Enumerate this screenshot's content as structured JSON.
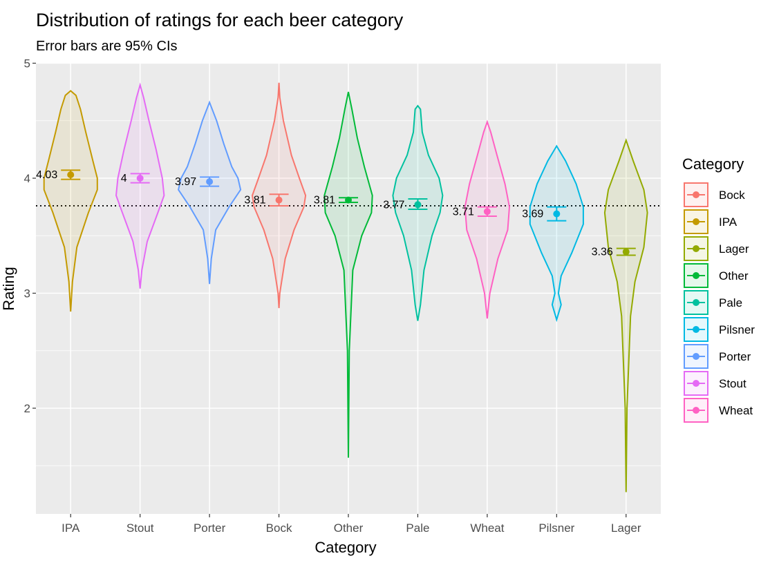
{
  "chart_data": {
    "type": "violin",
    "title": "Distribution of ratings for each beer category",
    "subtitle": "Error bars are 95% CIs",
    "xlabel": "Category",
    "ylabel": "Rating",
    "ylim": [
      1.1,
      5.0
    ],
    "yticks": [
      2,
      3,
      4,
      5
    ],
    "grid": true,
    "reference_line": {
      "y": 3.76,
      "style": "dotted"
    },
    "legend": {
      "title": "Category",
      "position": "right"
    },
    "categories": [
      "IPA",
      "Stout",
      "Porter",
      "Bock",
      "Other",
      "Pale",
      "Wheat",
      "Pilsner",
      "Lager"
    ],
    "series": [
      {
        "name": "IPA",
        "color": "#C49A00",
        "mean": 4.03,
        "label": "4.03",
        "ci": [
          3.99,
          4.07
        ],
        "shape": [
          [
            2.84,
            0.0
          ],
          [
            3.1,
            0.02
          ],
          [
            3.4,
            0.07
          ],
          [
            3.7,
            0.2
          ],
          [
            3.9,
            0.3
          ],
          [
            4.0,
            0.3
          ],
          [
            4.15,
            0.25
          ],
          [
            4.4,
            0.17
          ],
          [
            4.6,
            0.11
          ],
          [
            4.72,
            0.06
          ],
          [
            4.76,
            0.0
          ]
        ]
      },
      {
        "name": "Stout",
        "color": "#E56AF5",
        "mean": 4.0,
        "label": "4",
        "ci": [
          3.96,
          4.04
        ],
        "shape": [
          [
            3.04,
            0.0
          ],
          [
            3.2,
            0.02
          ],
          [
            3.45,
            0.08
          ],
          [
            3.7,
            0.2
          ],
          [
            3.85,
            0.27
          ],
          [
            4.0,
            0.25
          ],
          [
            4.25,
            0.18
          ],
          [
            4.5,
            0.1
          ],
          [
            4.7,
            0.04
          ],
          [
            4.81,
            0.0
          ]
        ]
      },
      {
        "name": "Porter",
        "color": "#619CFF",
        "mean": 3.97,
        "label": "3.97",
        "ci": [
          3.93,
          4.01
        ],
        "shape": [
          [
            3.08,
            0.0
          ],
          [
            3.3,
            0.02
          ],
          [
            3.55,
            0.07
          ],
          [
            3.75,
            0.22
          ],
          [
            3.9,
            0.35
          ],
          [
            4.0,
            0.32
          ],
          [
            4.1,
            0.25
          ],
          [
            4.3,
            0.16
          ],
          [
            4.5,
            0.08
          ],
          [
            4.66,
            0.0
          ]
        ]
      },
      {
        "name": "Bock",
        "color": "#F8766D",
        "mean": 3.81,
        "label": "3.81",
        "ci": [
          3.76,
          3.86
        ],
        "shape": [
          [
            2.87,
            0.0
          ],
          [
            3.0,
            0.01
          ],
          [
            3.3,
            0.07
          ],
          [
            3.55,
            0.17
          ],
          [
            3.75,
            0.28
          ],
          [
            3.85,
            0.3
          ],
          [
            4.0,
            0.23
          ],
          [
            4.2,
            0.14
          ],
          [
            4.5,
            0.05
          ],
          [
            4.7,
            0.01
          ],
          [
            4.83,
            0.0
          ]
        ]
      },
      {
        "name": "Other",
        "color": "#00BA38",
        "mean": 3.81,
        "label": "3.81",
        "ci": [
          3.79,
          3.83
        ],
        "shape": [
          [
            1.57,
            0.0
          ],
          [
            2.5,
            0.01
          ],
          [
            3.2,
            0.05
          ],
          [
            3.5,
            0.15
          ],
          [
            3.7,
            0.26
          ],
          [
            3.85,
            0.27
          ],
          [
            4.1,
            0.18
          ],
          [
            4.35,
            0.1
          ],
          [
            4.6,
            0.04
          ],
          [
            4.75,
            0.0
          ]
        ]
      },
      {
        "name": "Pale",
        "color": "#00C19F",
        "mean": 3.77,
        "label": "3.77",
        "ci": [
          3.73,
          3.82
        ],
        "shape": [
          [
            2.76,
            0.0
          ],
          [
            2.9,
            0.03
          ],
          [
            3.2,
            0.07
          ],
          [
            3.5,
            0.16
          ],
          [
            3.7,
            0.25
          ],
          [
            3.85,
            0.28
          ],
          [
            4.0,
            0.24
          ],
          [
            4.2,
            0.12
          ],
          [
            4.4,
            0.05
          ],
          [
            4.6,
            0.03
          ],
          [
            4.63,
            0.0
          ]
        ]
      },
      {
        "name": "Wheat",
        "color": "#FF61C3",
        "mean": 3.71,
        "label": "3.71",
        "ci": [
          3.67,
          3.75
        ],
        "shape": [
          [
            2.78,
            0.0
          ],
          [
            3.0,
            0.03
          ],
          [
            3.3,
            0.12
          ],
          [
            3.55,
            0.23
          ],
          [
            3.75,
            0.25
          ],
          [
            3.95,
            0.2
          ],
          [
            4.2,
            0.11
          ],
          [
            4.4,
            0.04
          ],
          [
            4.49,
            0.0
          ]
        ]
      },
      {
        "name": "Pilsner",
        "color": "#00B9E3",
        "mean": 3.69,
        "label": "3.69",
        "ci": [
          3.63,
          3.75
        ],
        "shape": [
          [
            2.77,
            0.0
          ],
          [
            2.9,
            0.05
          ],
          [
            3.0,
            0.02
          ],
          [
            3.15,
            0.05
          ],
          [
            3.35,
            0.17
          ],
          [
            3.6,
            0.3
          ],
          [
            3.75,
            0.3
          ],
          [
            3.95,
            0.22
          ],
          [
            4.15,
            0.1
          ],
          [
            4.28,
            0.0
          ]
        ]
      },
      {
        "name": "Lager",
        "color": "#93AA00",
        "mean": 3.36,
        "label": "3.36",
        "ci": [
          3.33,
          3.39
        ],
        "shape": [
          [
            1.27,
            0.0
          ],
          [
            2.0,
            0.01
          ],
          [
            2.8,
            0.05
          ],
          [
            3.1,
            0.1
          ],
          [
            3.4,
            0.2
          ],
          [
            3.7,
            0.24
          ],
          [
            3.9,
            0.2
          ],
          [
            4.15,
            0.08
          ],
          [
            4.33,
            0.0
          ]
        ]
      }
    ],
    "legend_order": [
      "Bock",
      "IPA",
      "Lager",
      "Other",
      "Pale",
      "Pilsner",
      "Porter",
      "Stout",
      "Wheat"
    ]
  }
}
